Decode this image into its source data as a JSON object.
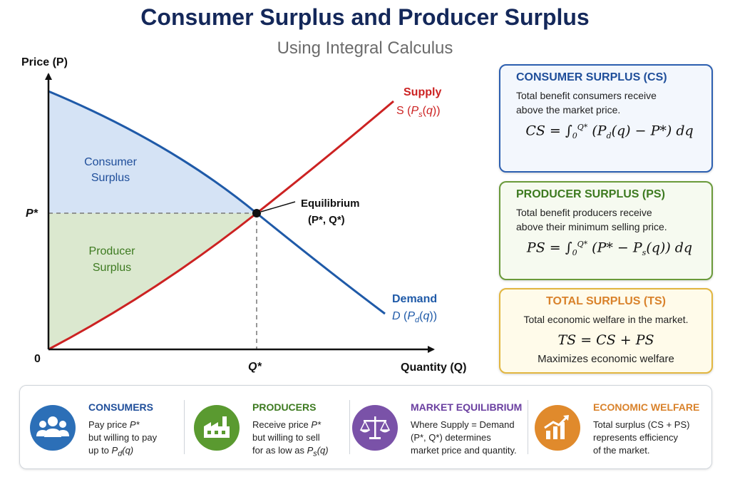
{
  "title": "Consumer Surplus and Producer Surplus",
  "subtitle": "Using Integral Calculus",
  "graph": {
    "y_axis_label": "Price (P)",
    "x_axis_label": "Quantity (Q)",
    "origin_label": "0",
    "p_star_label": "P*",
    "q_star_label": "Q*",
    "supply_label": "Supply",
    "supply_function": "S (P_s(q))",
    "demand_label": "Demand",
    "demand_function": "D (P_d(q))",
    "equilibrium_label": "Equilibrium",
    "equilibrium_point_label": "(P*, Q*)",
    "consumer_surplus_label": [
      "Consumer",
      "Surplus"
    ],
    "producer_surplus_label": [
      "Producer",
      "Surplus"
    ],
    "colors": {
      "supply": "#cc2222",
      "demand": "#1f5aa8",
      "consumer_fill": "#d5e3f5",
      "producer_fill": "#dbe8cf",
      "cs_text": "#1f4e9a",
      "ps_text": "#3d7a20"
    }
  },
  "cards": {
    "consumer": {
      "heading": "CONSUMER SURPLUS (CS)",
      "line1": "Total benefit consumers receive",
      "line2": "above the market price."
    },
    "producer": {
      "heading": "PRODUCER SURPLUS (PS)",
      "line1": "Total benefit producers receive",
      "line2": "above their minimum selling price."
    },
    "total": {
      "heading": "TOTAL SURPLUS (TS)",
      "line1": "Total economic welfare in the market.",
      "formula": "TS = CS + PS",
      "note": "Maximizes economic welfare"
    }
  },
  "bottom": {
    "consumers": {
      "icon": "people-icon",
      "color": "#2c6fb7",
      "heading": "CONSUMERS",
      "lines": [
        "Pay price P*",
        "but willing to pay",
        "up to P_d(q)"
      ]
    },
    "producers": {
      "icon": "factory-icon",
      "color": "#5a9a30",
      "heading": "PRODUCERS",
      "lines": [
        "Receive price P*",
        "but willing to sell",
        "for as low as P_s(q)"
      ]
    },
    "equilibrium": {
      "icon": "balance-scale-icon",
      "color": "#7a52a8",
      "heading": "MARKET EQUILIBRIUM",
      "lines": [
        "Where Supply = Demand",
        "(P*, Q*) determines",
        "market price and quantity."
      ]
    },
    "welfare": {
      "icon": "growth-chart-icon",
      "color": "#e08a2c",
      "heading": "ECONOMIC WELFARE",
      "lines": [
        "Total surplus (CS + PS)",
        "represents efficiency",
        "of the market."
      ]
    }
  }
}
